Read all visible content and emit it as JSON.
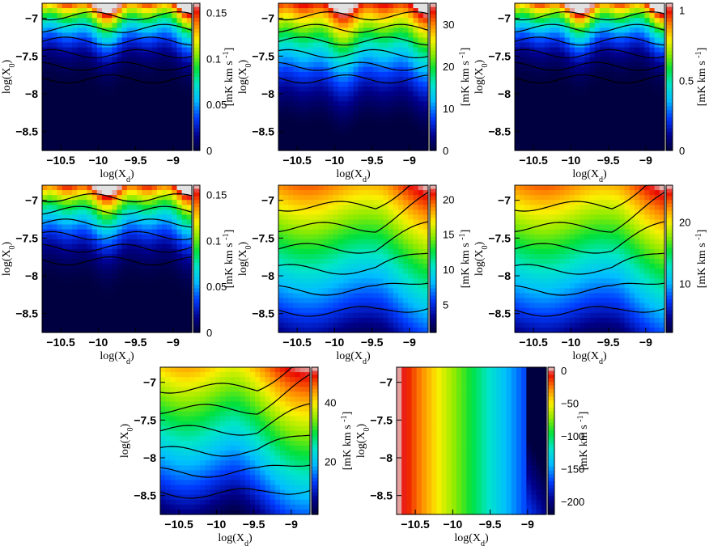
{
  "chart_data": [
    {
      "type": "heatmap",
      "xlabel": "log(X",
      "xsub": "d",
      "ylabel": "log(X",
      "ysub": "0",
      "cbar_label": "[mK km s",
      "cbar_sup": "-1",
      "cbar_close": "]",
      "xlim": [
        -10.75,
        -8.75
      ],
      "ylim": [
        -8.75,
        -6.8
      ],
      "xticks": [
        "-10.5",
        "-10",
        "-9.5",
        "-9"
      ],
      "yticks": [
        "-7",
        "-7.5",
        "-8",
        "-8.5"
      ],
      "cbar_ticks": [
        "0.15",
        "0.1",
        "0.05",
        "0"
      ],
      "cbar_range": [
        0,
        0.16
      ],
      "pattern": "top"
    },
    {
      "type": "heatmap",
      "xlabel": "log(X",
      "xsub": "d",
      "ylabel": "log(X",
      "ysub": "0",
      "cbar_label": "[mK km s",
      "cbar_sup": "-1",
      "cbar_close": "]",
      "xlim": [
        -10.75,
        -8.75
      ],
      "ylim": [
        -8.75,
        -6.8
      ],
      "xticks": [
        "-10.5",
        "-10",
        "-9.5",
        "-9"
      ],
      "yticks": [
        "-7",
        "-7.5",
        "-8",
        "-8.5"
      ],
      "cbar_ticks": [
        "30",
        "20",
        "10",
        "0"
      ],
      "cbar_range": [
        0,
        35
      ],
      "pattern": "top_broad"
    },
    {
      "type": "heatmap",
      "xlabel": "log(X",
      "xsub": "d",
      "ylabel": "log(X",
      "ysub": "0",
      "cbar_label": "[mK km s",
      "cbar_sup": "-1",
      "cbar_close": "]",
      "xlim": [
        -10.75,
        -8.75
      ],
      "ylim": [
        -8.75,
        -6.8
      ],
      "xticks": [
        "-10.5",
        "-10",
        "-9.5",
        "-9"
      ],
      "yticks": [
        "-7",
        "-7.5",
        "-8",
        "-8.5"
      ],
      "cbar_ticks": [
        "1",
        "0.5",
        "0"
      ],
      "cbar_range": [
        0,
        1.05
      ],
      "pattern": "top"
    },
    {
      "type": "heatmap",
      "xlabel": "log(X",
      "xsub": "d",
      "ylabel": "log(X",
      "ysub": "0",
      "cbar_label": "[mK km s",
      "cbar_sup": "-1",
      "cbar_close": "]",
      "xlim": [
        -10.75,
        -8.75
      ],
      "ylim": [
        -8.75,
        -6.8
      ],
      "xticks": [
        "-10.5",
        "-10",
        "-9.5",
        "-9"
      ],
      "yticks": [
        "-7",
        "-7.5",
        "-8",
        "-8.5"
      ],
      "cbar_ticks": [
        "0.15",
        "0.1",
        "0.05",
        "0"
      ],
      "cbar_range": [
        0,
        0.16
      ],
      "pattern": "top_mid"
    },
    {
      "type": "heatmap",
      "xlabel": "log(X",
      "xsub": "d",
      "ylabel": "log(X",
      "ysub": "0",
      "cbar_label": "[mK km s",
      "cbar_sup": "-1",
      "cbar_close": "]",
      "xlim": [
        -10.75,
        -8.75
      ],
      "ylim": [
        -8.75,
        -6.8
      ],
      "xticks": [
        "-10.5",
        "-10",
        "-9.5",
        "-9"
      ],
      "yticks": [
        "-7",
        "-7.5",
        "-8",
        "-8.5"
      ],
      "cbar_ticks": [
        "20",
        "15",
        "10",
        "5"
      ],
      "cbar_range": [
        1,
        22
      ],
      "pattern": "diag"
    },
    {
      "type": "heatmap",
      "xlabel": "log(X",
      "xsub": "d",
      "ylabel": "log(X",
      "ysub": "0",
      "cbar_label": "[mK km s",
      "cbar_sup": "-1",
      "cbar_close": "]",
      "xlim": [
        -10.75,
        -8.75
      ],
      "ylim": [
        -8.75,
        -6.8
      ],
      "xticks": [
        "-10.5",
        "-10",
        "-9.5",
        "-9"
      ],
      "yticks": [
        "-7",
        "-7.5",
        "-8",
        "-8.5"
      ],
      "cbar_ticks": [
        "20",
        "10"
      ],
      "cbar_range": [
        2,
        26
      ],
      "pattern": "diag"
    },
    {
      "type": "heatmap",
      "xlabel": "log(X",
      "xsub": "d",
      "ylabel": "log(X",
      "ysub": "0",
      "cbar_label": "[mK km s",
      "cbar_sup": "-1",
      "cbar_close": "]",
      "xlim": [
        -10.75,
        -8.75
      ],
      "ylim": [
        -8.75,
        -6.8
      ],
      "xticks": [
        "-10.5",
        "-10",
        "-9.5",
        "-9"
      ],
      "yticks": [
        "-7",
        "-7.5",
        "-8",
        "-8.5"
      ],
      "cbar_ticks": [
        "40",
        "20"
      ],
      "cbar_range": [
        2,
        52
      ],
      "pattern": "diag2"
    },
    {
      "type": "heatmap",
      "xlabel": "log(X",
      "xsub": "d",
      "ylabel": "log(X",
      "ysub": "0",
      "cbar_label": "[mK km s",
      "cbar_sup": "-1",
      "cbar_close": "]",
      "xlim": [
        -10.75,
        -8.75
      ],
      "ylim": [
        -8.75,
        -6.8
      ],
      "xticks": [
        "-10.5",
        "-10",
        "-9.5",
        "-9"
      ],
      "yticks": [
        "-7",
        "-7.5",
        "-8",
        "-8.5"
      ],
      "cbar_ticks": [
        "0",
        "-50",
        "-100",
        "-150",
        "-200"
      ],
      "cbar_range": [
        -220,
        5
      ],
      "pattern": "vertical"
    }
  ]
}
